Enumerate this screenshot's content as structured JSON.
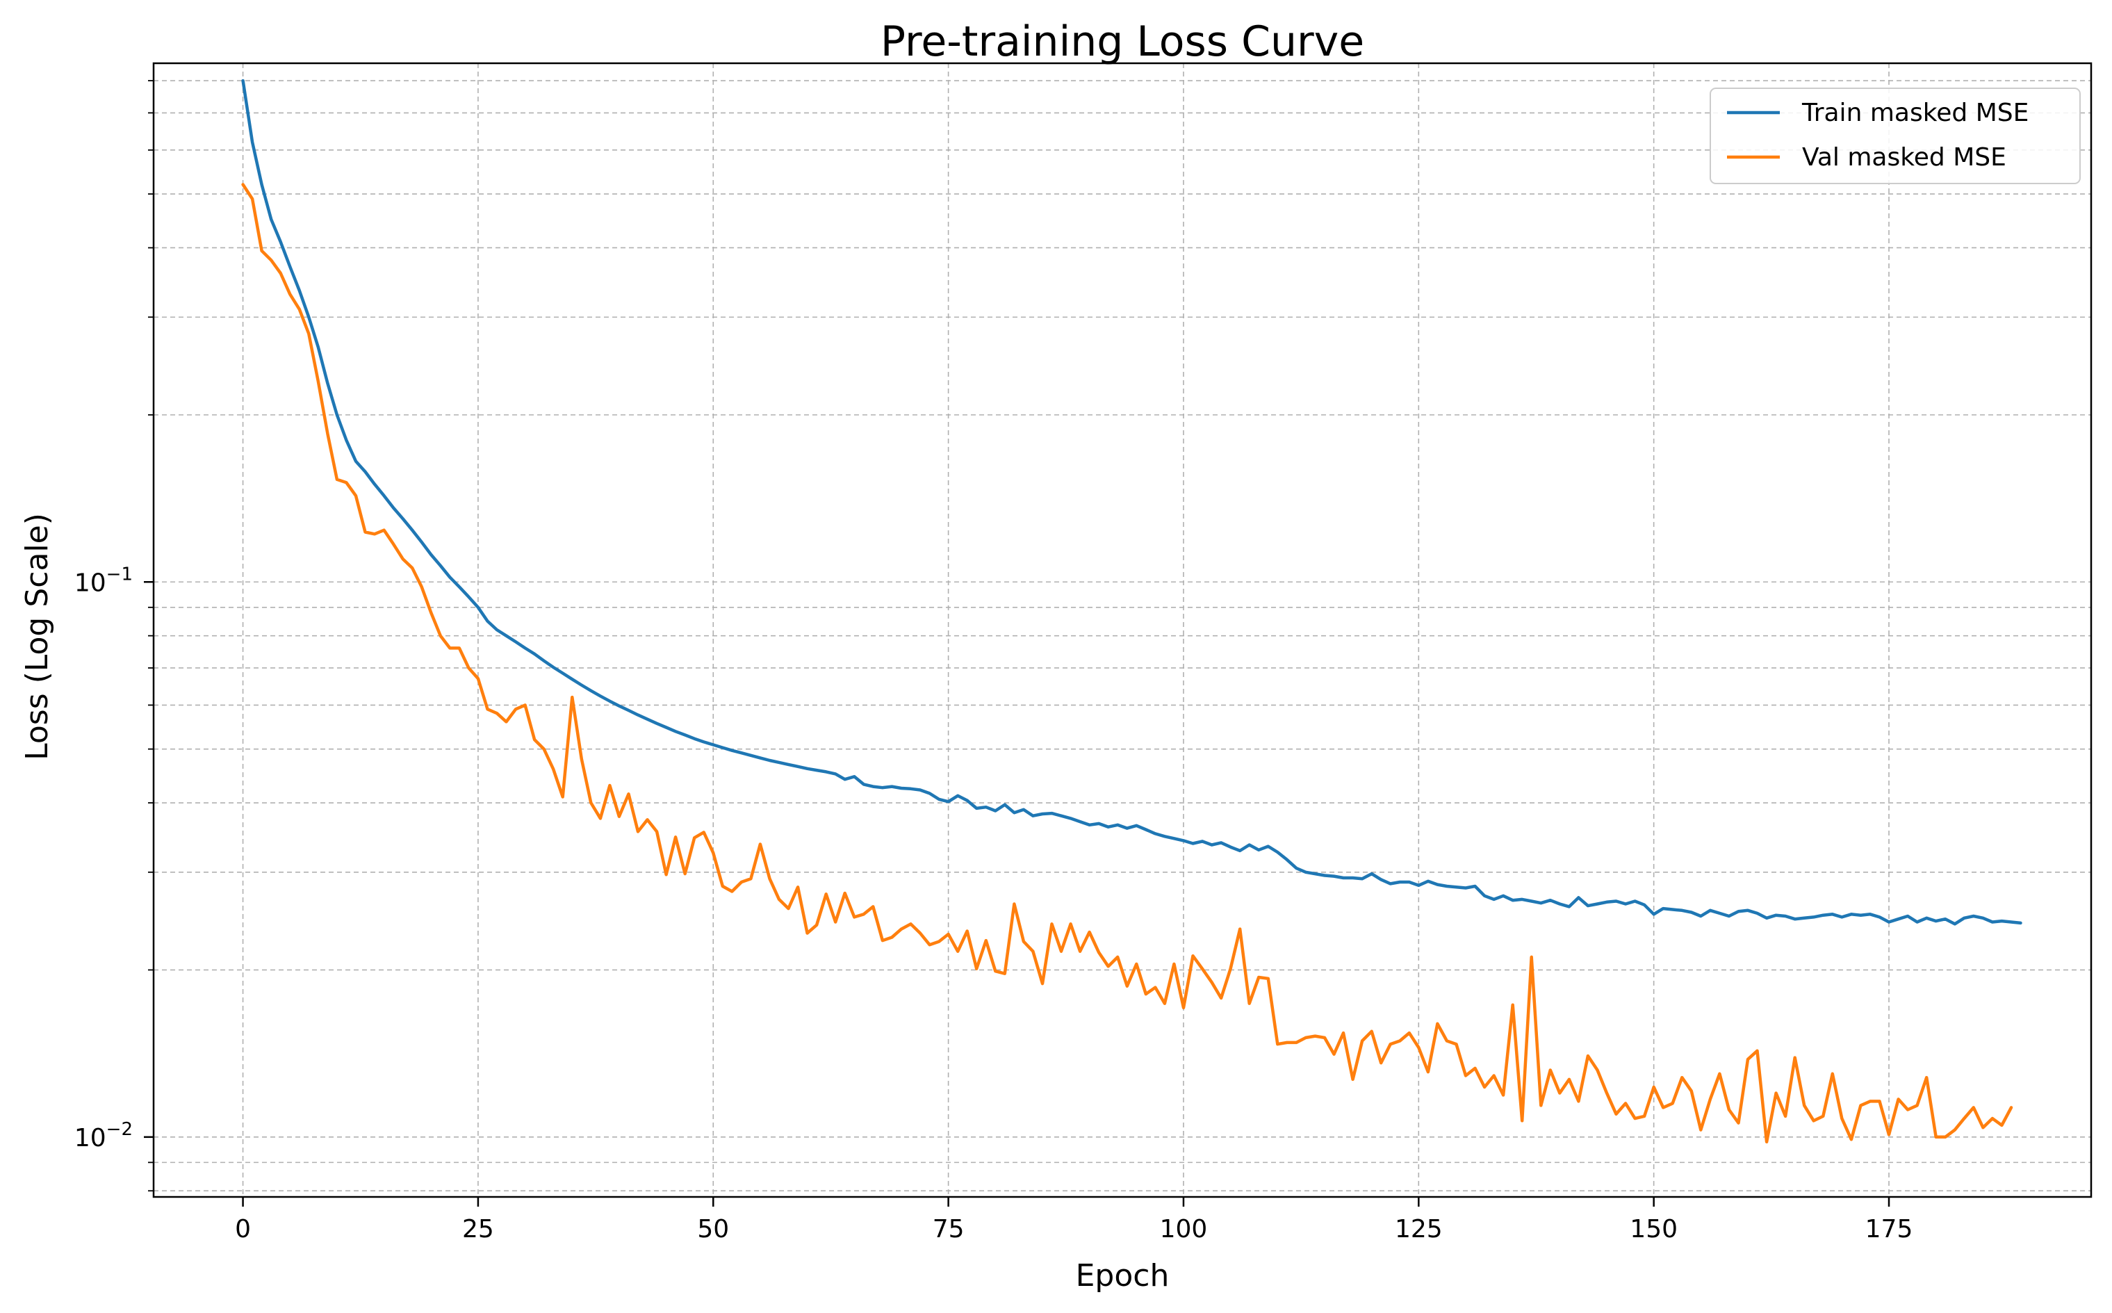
{
  "chart_data": {
    "type": "line",
    "title": "Pre-training Loss Curve",
    "xlabel": "Epoch",
    "ylabel": "Loss (Log Scale)",
    "xlim": [
      -9.5,
      196.5
    ],
    "ylim": [
      0.0078,
      0.86
    ],
    "yscale": "log",
    "grid": true,
    "legend_position": "top-right",
    "x_ticks": [
      0,
      25,
      50,
      75,
      100,
      125,
      150,
      175
    ],
    "x_tick_labels": [
      "0",
      "25",
      "50",
      "75",
      "100",
      "125",
      "150",
      "175"
    ],
    "y_ticks": [
      0.01,
      0.1
    ],
    "y_tick_labels": [
      {
        "base": "10",
        "exp": "−2"
      },
      {
        "base": "10",
        "exp": "−1"
      }
    ],
    "x_start": 0,
    "series": [
      {
        "name": "Train masked MSE",
        "color": "#1f77b4",
        "values": [
          0.8,
          0.62,
          0.52,
          0.45,
          0.41,
          0.37,
          0.335,
          0.3,
          0.265,
          0.228,
          0.2,
          0.18,
          0.165,
          0.158,
          0.15,
          0.143,
          0.136,
          0.13,
          0.124,
          0.118,
          0.112,
          0.107,
          0.102,
          0.098,
          0.094,
          0.09,
          0.085,
          0.082,
          0.08,
          0.078,
          0.076,
          0.0742,
          0.0721,
          0.0702,
          0.0685,
          0.0668,
          0.0652,
          0.0637,
          0.0623,
          0.061,
          0.0598,
          0.0587,
          0.0576,
          0.0566,
          0.0556,
          0.0547,
          0.0538,
          0.053,
          0.0522,
          0.0515,
          0.0509,
          0.0503,
          0.0497,
          0.0492,
          0.0487,
          0.0482,
          0.0477,
          0.0473,
          0.0469,
          0.0465,
          0.0461,
          0.0458,
          0.0455,
          0.0451,
          0.0441,
          0.0446,
          0.0432,
          0.0428,
          0.0426,
          0.0428,
          0.0425,
          0.0424,
          0.0422,
          0.0416,
          0.0406,
          0.0402,
          0.0412,
          0.0404,
          0.0391,
          0.0393,
          0.0387,
          0.0397,
          0.0384,
          0.0389,
          0.0379,
          0.0382,
          0.0383,
          0.0379,
          0.0375,
          0.037,
          0.0365,
          0.0367,
          0.0362,
          0.0365,
          0.036,
          0.0364,
          0.0358,
          0.0352,
          0.0348,
          0.0345,
          0.0342,
          0.0338,
          0.0341,
          0.0336,
          0.0339,
          0.0333,
          0.0328,
          0.0336,
          0.0329,
          0.0334,
          0.0326,
          0.0316,
          0.0305,
          0.03,
          0.0298,
          0.0296,
          0.0295,
          0.0293,
          0.0293,
          0.0292,
          0.0298,
          0.0291,
          0.0286,
          0.0288,
          0.0288,
          0.0284,
          0.0289,
          0.0285,
          0.0283,
          0.0282,
          0.0281,
          0.0283,
          0.0272,
          0.0268,
          0.0272,
          0.0267,
          0.0268,
          0.0266,
          0.0264,
          0.0267,
          0.0263,
          0.026,
          0.027,
          0.0261,
          0.0263,
          0.0265,
          0.0266,
          0.0263,
          0.0266,
          0.0262,
          0.0252,
          0.0258,
          0.0257,
          0.0256,
          0.0254,
          0.025,
          0.0256,
          0.0253,
          0.025,
          0.0255,
          0.0256,
          0.0253,
          0.0248,
          0.0251,
          0.025,
          0.0247,
          0.0248,
          0.0249,
          0.0251,
          0.0252,
          0.0249,
          0.0252,
          0.0251,
          0.0252,
          0.0249,
          0.0244,
          0.0247,
          0.025,
          0.0244,
          0.0248,
          0.0245,
          0.0247,
          0.0242,
          0.0248,
          0.025,
          0.0248,
          0.0244,
          0.0245,
          0.0244,
          0.0243
        ]
      },
      {
        "name": "Val masked MSE",
        "color": "#ff7f0e",
        "values": [
          0.52,
          0.49,
          0.395,
          0.38,
          0.36,
          0.33,
          0.31,
          0.28,
          0.23,
          0.185,
          0.153,
          0.151,
          0.143,
          0.123,
          0.122,
          0.124,
          0.117,
          0.11,
          0.106,
          0.098,
          0.088,
          0.08,
          0.076,
          0.076,
          0.07,
          0.067,
          0.059,
          0.058,
          0.056,
          0.059,
          0.06,
          0.052,
          0.05,
          0.046,
          0.041,
          0.062,
          0.048,
          0.04,
          0.0375,
          0.043,
          0.0378,
          0.0415,
          0.0355,
          0.0373,
          0.0355,
          0.0297,
          0.0347,
          0.0298,
          0.0346,
          0.0354,
          0.0325,
          0.0283,
          0.0277,
          0.0288,
          0.0292,
          0.0337,
          0.0292,
          0.0268,
          0.0258,
          0.0282,
          0.0233,
          0.0241,
          0.0274,
          0.0244,
          0.0275,
          0.0249,
          0.0252,
          0.026,
          0.0226,
          0.0229,
          0.0237,
          0.0242,
          0.0233,
          0.0222,
          0.0225,
          0.0232,
          0.0216,
          0.0235,
          0.0201,
          0.0226,
          0.0199,
          0.0197,
          0.0263,
          0.0225,
          0.0216,
          0.0189,
          0.0242,
          0.0216,
          0.0242,
          0.0216,
          0.0234,
          0.0215,
          0.0203,
          0.0211,
          0.0187,
          0.0205,
          0.0181,
          0.0186,
          0.0174,
          0.0205,
          0.0171,
          0.0212,
          0.0201,
          0.019,
          0.0178,
          0.0201,
          0.0237,
          0.0174,
          0.0194,
          0.0193,
          0.0147,
          0.0148,
          0.0148,
          0.0151,
          0.0152,
          0.0151,
          0.0141,
          0.0154,
          0.0127,
          0.0149,
          0.0155,
          0.0136,
          0.0147,
          0.0149,
          0.0154,
          0.0145,
          0.0131,
          0.016,
          0.0149,
          0.0147,
          0.0129,
          0.0133,
          0.0123,
          0.0129,
          0.0119,
          0.0173,
          0.0107,
          0.0211,
          0.0114,
          0.0132,
          0.012,
          0.0127,
          0.0116,
          0.014,
          0.0132,
          0.012,
          0.011,
          0.0115,
          0.0108,
          0.0109,
          0.0123,
          0.0113,
          0.0115,
          0.0128,
          0.0121,
          0.0103,
          0.0117,
          0.013,
          0.0112,
          0.0106,
          0.0138,
          0.0143,
          0.0098,
          0.012,
          0.0109,
          0.0139,
          0.0114,
          0.0107,
          0.0109,
          0.013,
          0.0108,
          0.0099,
          0.0114,
          0.0116,
          0.0116,
          0.0101,
          0.0117,
          0.0112,
          0.0114,
          0.0128,
          0.01,
          0.01,
          0.0103,
          0.0108,
          0.0113,
          0.0104,
          0.0108,
          0.0105,
          0.0113
        ]
      }
    ]
  }
}
